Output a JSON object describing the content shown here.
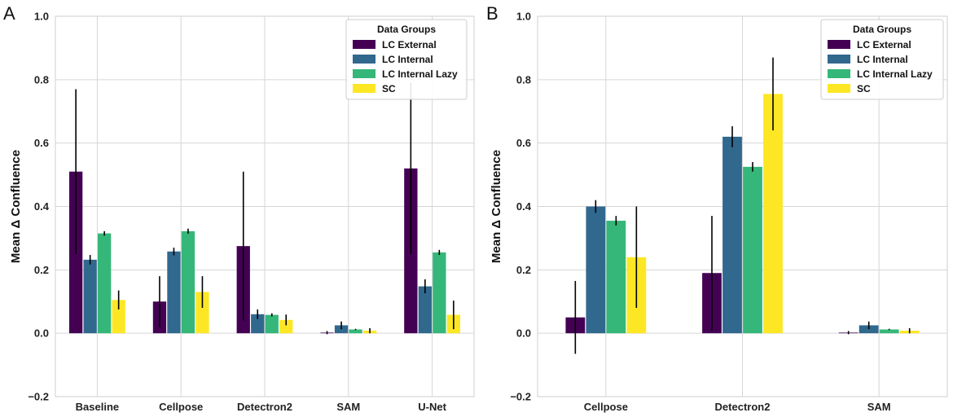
{
  "figure": {
    "panel_labels": [
      "A",
      "B"
    ]
  },
  "chart_data": [
    {
      "panel": "A",
      "type": "bar",
      "title": "",
      "xlabel": "",
      "ylabel": "Mean Δ Confluence",
      "ylim": [
        -0.2,
        1.0
      ],
      "yticks": [
        "−0.2",
        "0.0",
        "0.2",
        "0.4",
        "0.6",
        "0.8",
        "1.0"
      ],
      "ytick_values": [
        -0.2,
        0.0,
        0.2,
        0.4,
        0.6,
        0.8,
        1.0
      ],
      "grid": true,
      "legend": {
        "title": "Data Groups",
        "placement": "top-right"
      },
      "categories": [
        "Baseline",
        "Cellpose",
        "Detectron2",
        "SAM",
        "U-Net"
      ],
      "series": [
        {
          "name": "LC External",
          "color": "#440154",
          "values": [
            0.51,
            0.1,
            0.275,
            0.002,
            0.52
          ],
          "errors": [
            0.26,
            0.08,
            0.235,
            0.005,
            0.27
          ]
        },
        {
          "name": "LC Internal",
          "color": "#31688e",
          "values": [
            0.232,
            0.258,
            0.06,
            0.025,
            0.148
          ],
          "errors": [
            0.015,
            0.012,
            0.015,
            0.012,
            0.022
          ]
        },
        {
          "name": "LC Internal Lazy",
          "color": "#35b779",
          "values": [
            0.315,
            0.322,
            0.058,
            0.012,
            0.255
          ],
          "errors": [
            0.007,
            0.008,
            0.005,
            0.002,
            0.008
          ]
        },
        {
          "name": "SC",
          "color": "#fde725",
          "values": [
            0.105,
            0.13,
            0.042,
            0.008,
            0.058
          ],
          "errors": [
            0.03,
            0.05,
            0.017,
            0.008,
            0.045
          ]
        }
      ]
    },
    {
      "panel": "B",
      "type": "bar",
      "title": "",
      "xlabel": "",
      "ylabel": "Mean Δ Confluence",
      "ylim": [
        -0.2,
        1.0
      ],
      "yticks": [
        "−0.2",
        "0.0",
        "0.2",
        "0.4",
        "0.6",
        "0.8",
        "1.0"
      ],
      "ytick_values": [
        -0.2,
        0.0,
        0.2,
        0.4,
        0.6,
        0.8,
        1.0
      ],
      "grid": true,
      "legend": {
        "title": "Data Groups",
        "placement": "top-right"
      },
      "categories": [
        "Cellpose",
        "Detectron2",
        "SAM"
      ],
      "series": [
        {
          "name": "LC External",
          "color": "#440154",
          "values": [
            0.05,
            0.19,
            0.002
          ],
          "errors": [
            0.115,
            0.18,
            0.005
          ]
        },
        {
          "name": "LC Internal",
          "color": "#31688e",
          "values": [
            0.4,
            0.62,
            0.025
          ],
          "errors": [
            0.02,
            0.033,
            0.012
          ]
        },
        {
          "name": "LC Internal Lazy",
          "color": "#35b779",
          "values": [
            0.355,
            0.525,
            0.012
          ],
          "errors": [
            0.015,
            0.015,
            0.002
          ]
        },
        {
          "name": "SC",
          "color": "#fde725",
          "values": [
            0.24,
            0.755,
            0.008
          ],
          "errors": [
            0.16,
            0.115,
            0.008
          ]
        }
      ]
    }
  ]
}
